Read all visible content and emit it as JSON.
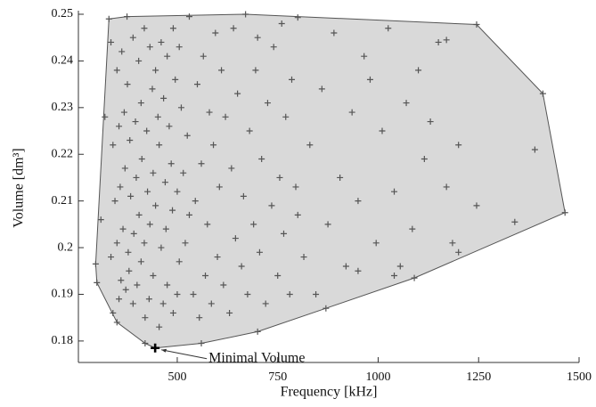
{
  "chart_data": {
    "type": "scatter",
    "x_label": "Frequency [kHz]",
    "y_label": "Volume [dm³]",
    "x": [
      330,
      375,
      530,
      670,
      800,
      1245,
      1410,
      1465,
      1200,
      1090,
      870,
      700,
      560,
      445,
      420,
      350,
      300,
      297,
      310,
      320,
      335,
      340,
      355,
      360,
      372,
      380,
      390,
      400,
      410,
      420,
      430,
      440,
      455,
      465,
      475,
      490,
      500,
      335,
      350,
      365,
      378,
      392,
      405,
      418,
      432,
      446,
      460,
      472,
      488,
      505,
      520,
      345,
      358,
      370,
      384,
      398,
      412,
      426,
      440,
      455,
      470,
      485,
      500,
      515,
      530,
      340,
      355,
      368,
      382,
      396,
      410,
      424,
      438,
      452,
      466,
      480,
      495,
      510,
      525,
      350,
      362,
      376,
      390,
      404,
      418,
      432,
      446,
      460,
      475,
      490,
      505,
      540,
      555,
      570,
      585,
      600,
      615,
      630,
      645,
      660,
      675,
      690,
      705,
      720,
      735,
      750,
      765,
      780,
      795,
      545,
      560,
      575,
      590,
      605,
      620,
      635,
      650,
      665,
      680,
      695,
      710,
      725,
      740,
      755,
      770,
      785,
      800,
      550,
      565,
      580,
      595,
      610,
      640,
      700,
      760,
      815,
      830,
      845,
      860,
      875,
      890,
      905,
      920,
      935,
      950,
      965,
      980,
      995,
      1010,
      1025,
      1040,
      1055,
      1070,
      1085,
      1100,
      1115,
      1130,
      1150,
      1170,
      1185,
      1200,
      1245,
      1340,
      1390,
      1170,
      1040,
      950
    ],
    "values": [
      0.249,
      0.2495,
      0.2495,
      0.25,
      0.2493,
      0.2478,
      0.233,
      0.2075,
      0.199,
      0.1935,
      0.187,
      0.182,
      0.1795,
      0.1785,
      0.1795,
      0.184,
      0.1925,
      0.1965,
      0.206,
      0.228,
      0.244,
      0.186,
      0.189,
      0.193,
      0.191,
      0.195,
      0.188,
      0.192,
      0.197,
      0.185,
      0.189,
      0.194,
      0.183,
      0.188,
      0.192,
      0.186,
      0.19,
      0.198,
      0.201,
      0.204,
      0.199,
      0.203,
      0.207,
      0.201,
      0.205,
      0.209,
      0.2,
      0.204,
      0.208,
      0.197,
      0.201,
      0.21,
      0.213,
      0.217,
      0.211,
      0.215,
      0.219,
      0.212,
      0.216,
      0.222,
      0.214,
      0.218,
      0.212,
      0.216,
      0.207,
      0.222,
      0.226,
      0.229,
      0.223,
      0.227,
      0.231,
      0.225,
      0.234,
      0.228,
      0.232,
      0.226,
      0.236,
      0.23,
      0.224,
      0.238,
      0.242,
      0.235,
      0.245,
      0.24,
      0.247,
      0.243,
      0.238,
      0.244,
      0.241,
      0.247,
      0.243,
      0.19,
      0.185,
      0.194,
      0.188,
      0.198,
      0.192,
      0.186,
      0.202,
      0.196,
      0.19,
      0.205,
      0.199,
      0.188,
      0.209,
      0.194,
      0.203,
      0.19,
      0.213,
      0.21,
      0.218,
      0.205,
      0.222,
      0.213,
      0.228,
      0.217,
      0.233,
      0.211,
      0.225,
      0.238,
      0.219,
      0.231,
      0.243,
      0.215,
      0.228,
      0.236,
      0.207,
      0.235,
      0.241,
      0.229,
      0.246,
      0.238,
      0.247,
      0.245,
      0.248,
      0.198,
      0.222,
      0.19,
      0.234,
      0.205,
      0.246,
      0.215,
      0.196,
      0.229,
      0.21,
      0.241,
      0.236,
      0.201,
      0.225,
      0.247,
      0.212,
      0.196,
      0.231,
      0.204,
      0.238,
      0.219,
      0.227,
      0.244,
      0.213,
      0.201,
      0.222,
      0.209,
      0.2055,
      0.221,
      0.2445,
      0.194,
      0.195
    ],
    "color": "#555555",
    "hull_color": "#d9d9d9",
    "annotation": {
      "text": "Minimal Volume",
      "x": 445,
      "y": 0.1785
    },
    "xlim": [
      254,
      1500
    ],
    "ylim": [
      0.1754,
      0.25
    ],
    "xticks": [
      500,
      750,
      1000,
      1250,
      1500
    ],
    "yticks": [
      0.18,
      0.19,
      0.2,
      0.21,
      0.22,
      0.23,
      0.24,
      0.25
    ]
  }
}
